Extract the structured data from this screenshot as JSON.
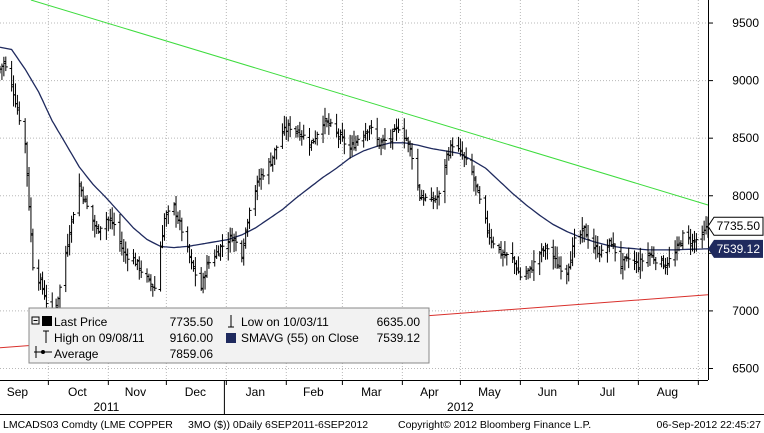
{
  "chart_data": {
    "type": "line",
    "subtype": "ohlc-bars",
    "colors": {
      "background": "#ffffff",
      "price_bars": "#000000",
      "sma": "#1f2a5e",
      "upper_trendline": "#3ddc3d",
      "lower_trendline": "#d9302c",
      "grid": "#b8b8b8",
      "last_price_tag_bg": "#ffffff",
      "sma_tag_bg": "#1f2a5e",
      "sma_tag_text": "#ffffff",
      "legend_bg": "#f2f2f2"
    },
    "y_axis": {
      "position": "right",
      "ylim": [
        6400,
        9700
      ],
      "ticks": [
        6500,
        7000,
        7500,
        8000,
        8500,
        9000,
        9500
      ],
      "tick_labels": [
        "6500",
        "7000",
        "7500",
        "8000",
        "8500",
        "9000",
        "9500"
      ]
    },
    "x_axis": {
      "range": [
        "2011-09-06",
        "2012-09-06"
      ],
      "month_ticks": [
        "2011-09-01",
        "2011-10-01",
        "2011-11-01",
        "2011-12-01",
        "2012-01-01",
        "2012-02-01",
        "2012-03-01",
        "2012-04-01",
        "2012-05-01",
        "2012-06-01",
        "2012-07-01",
        "2012-08-01",
        "2012-09-01"
      ],
      "month_labels": [
        {
          "label": "Sep",
          "at": "2011-09-15"
        },
        {
          "label": "Oct",
          "at": "2011-10-16"
        },
        {
          "label": "Nov",
          "at": "2011-11-15"
        },
        {
          "label": "Dec",
          "at": "2011-12-16"
        },
        {
          "label": "Jan",
          "at": "2012-01-16"
        },
        {
          "label": "Feb",
          "at": "2012-02-15"
        },
        {
          "label": "Mar",
          "at": "2012-03-16"
        },
        {
          "label": "Apr",
          "at": "2012-04-15"
        },
        {
          "label": "May",
          "at": "2012-05-16"
        },
        {
          "label": "Jun",
          "at": "2012-06-15"
        },
        {
          "label": "Jul",
          "at": "2012-07-16"
        },
        {
          "label": "Aug",
          "at": "2012-08-16"
        }
      ],
      "year_labels": [
        {
          "label": "2011",
          "at": "2011-10-31"
        },
        {
          "label": "2012",
          "at": "2012-05-01"
        }
      ],
      "year_divider": "2011-12-31"
    },
    "grid": true,
    "price_series": {
      "name": "LMCADS03 Comdty",
      "anchors": [
        [
          "2011-09-06",
          9100
        ],
        [
          "2011-09-08",
          9160
        ],
        [
          "2011-09-13",
          8900
        ],
        [
          "2011-09-19",
          8450
        ],
        [
          "2011-09-23",
          7400
        ],
        [
          "2011-09-28",
          7200
        ],
        [
          "2011-10-03",
          6900
        ],
        [
          "2011-10-07",
          7200
        ],
        [
          "2011-10-12",
          7700
        ],
        [
          "2011-10-17",
          8100
        ],
        [
          "2011-10-21",
          7900
        ],
        [
          "2011-10-26",
          7700
        ],
        [
          "2011-10-31",
          7800
        ],
        [
          "2011-11-04",
          7750
        ],
        [
          "2011-11-09",
          7500
        ],
        [
          "2011-11-14",
          7450
        ],
        [
          "2011-11-18",
          7350
        ],
        [
          "2011-11-22",
          7250
        ],
        [
          "2011-11-25",
          7200
        ],
        [
          "2011-11-30",
          7800
        ],
        [
          "2011-12-05",
          7900
        ],
        [
          "2011-12-09",
          7700
        ],
        [
          "2011-12-14",
          7400
        ],
        [
          "2011-12-19",
          7200
        ],
        [
          "2011-12-22",
          7400
        ],
        [
          "2011-12-29",
          7550
        ],
        [
          "2012-01-04",
          7650
        ],
        [
          "2012-01-09",
          7500
        ],
        [
          "2012-01-13",
          7900
        ],
        [
          "2012-01-18",
          8150
        ],
        [
          "2012-01-24",
          8300
        ],
        [
          "2012-01-30",
          8550
        ],
        [
          "2012-02-03",
          8600
        ],
        [
          "2012-02-08",
          8550
        ],
        [
          "2012-02-14",
          8450
        ],
        [
          "2012-02-20",
          8650
        ],
        [
          "2012-02-24",
          8600
        ],
        [
          "2012-02-29",
          8500
        ],
        [
          "2012-03-05",
          8400
        ],
        [
          "2012-03-09",
          8500
        ],
        [
          "2012-03-15",
          8600
        ],
        [
          "2012-03-20",
          8450
        ],
        [
          "2012-03-26",
          8500
        ],
        [
          "2012-03-30",
          8600
        ],
        [
          "2012-04-03",
          8500
        ],
        [
          "2012-04-06",
          8350
        ],
        [
          "2012-04-10",
          8000
        ],
        [
          "2012-04-16",
          7950
        ],
        [
          "2012-04-20",
          8000
        ],
        [
          "2012-04-24",
          8350
        ],
        [
          "2012-04-27",
          8450
        ],
        [
          "2012-05-02",
          8350
        ],
        [
          "2012-05-07",
          8200
        ],
        [
          "2012-05-11",
          7950
        ],
        [
          "2012-05-16",
          7650
        ],
        [
          "2012-05-22",
          7500
        ],
        [
          "2012-05-28",
          7450
        ],
        [
          "2012-06-01",
          7300
        ],
        [
          "2012-06-06",
          7350
        ],
        [
          "2012-06-11",
          7500
        ],
        [
          "2012-06-15",
          7550
        ],
        [
          "2012-06-20",
          7400
        ],
        [
          "2012-06-25",
          7350
        ],
        [
          "2012-06-29",
          7600
        ],
        [
          "2012-07-04",
          7700
        ],
        [
          "2012-07-09",
          7550
        ],
        [
          "2012-07-13",
          7500
        ],
        [
          "2012-07-18",
          7600
        ],
        [
          "2012-07-23",
          7400
        ],
        [
          "2012-07-27",
          7450
        ],
        [
          "2012-08-01",
          7400
        ],
        [
          "2012-08-06",
          7500
        ],
        [
          "2012-08-10",
          7450
        ],
        [
          "2012-08-15",
          7400
        ],
        [
          "2012-08-20",
          7500
        ],
        [
          "2012-08-24",
          7650
        ],
        [
          "2012-08-29",
          7600
        ],
        [
          "2012-09-03",
          7650
        ],
        [
          "2012-09-06",
          7735.5
        ]
      ]
    },
    "sma_series": {
      "name": "SMAVG (55) on Close",
      "anchors": [
        [
          "2011-09-06",
          9290
        ],
        [
          "2011-09-12",
          9270
        ],
        [
          "2011-09-19",
          9100
        ],
        [
          "2011-09-26",
          8900
        ],
        [
          "2011-10-03",
          8650
        ],
        [
          "2011-10-10",
          8450
        ],
        [
          "2011-10-17",
          8250
        ],
        [
          "2011-10-24",
          8100
        ],
        [
          "2011-10-31",
          7980
        ],
        [
          "2011-11-07",
          7850
        ],
        [
          "2011-11-14",
          7720
        ],
        [
          "2011-11-21",
          7620
        ],
        [
          "2011-11-28",
          7560
        ],
        [
          "2011-12-05",
          7550
        ],
        [
          "2011-12-12",
          7560
        ],
        [
          "2011-12-19",
          7580
        ],
        [
          "2011-12-26",
          7600
        ],
        [
          "2012-01-02",
          7620
        ],
        [
          "2012-01-09",
          7660
        ],
        [
          "2012-01-16",
          7720
        ],
        [
          "2012-01-23",
          7800
        ],
        [
          "2012-01-30",
          7880
        ],
        [
          "2012-02-06",
          7980
        ],
        [
          "2012-02-13",
          8070
        ],
        [
          "2012-02-20",
          8160
        ],
        [
          "2012-02-27",
          8240
        ],
        [
          "2012-03-05",
          8330
        ],
        [
          "2012-03-12",
          8390
        ],
        [
          "2012-03-19",
          8430
        ],
        [
          "2012-03-26",
          8460
        ],
        [
          "2012-04-02",
          8460
        ],
        [
          "2012-04-09",
          8440
        ],
        [
          "2012-04-16",
          8410
        ],
        [
          "2012-04-23",
          8390
        ],
        [
          "2012-04-30",
          8370
        ],
        [
          "2012-05-07",
          8310
        ],
        [
          "2012-05-14",
          8240
        ],
        [
          "2012-05-21",
          8130
        ],
        [
          "2012-05-28",
          8020
        ],
        [
          "2012-06-04",
          7920
        ],
        [
          "2012-06-11",
          7830
        ],
        [
          "2012-06-18",
          7750
        ],
        [
          "2012-06-25",
          7690
        ],
        [
          "2012-07-02",
          7640
        ],
        [
          "2012-07-09",
          7600
        ],
        [
          "2012-07-16",
          7570
        ],
        [
          "2012-07-23",
          7550
        ],
        [
          "2012-07-30",
          7540
        ],
        [
          "2012-08-06",
          7530
        ],
        [
          "2012-08-13",
          7530
        ],
        [
          "2012-08-20",
          7530
        ],
        [
          "2012-08-27",
          7535
        ],
        [
          "2012-09-06",
          7539.12
        ]
      ]
    },
    "upper_trendline": {
      "from": [
        "2011-09-22",
        9700
      ],
      "to": [
        "2012-09-06",
        7920
      ]
    },
    "lower_trendline": {
      "from": [
        "2011-09-06",
        6680
      ],
      "to": [
        "2012-09-06",
        7140
      ]
    },
    "last_price_tag": "7735.50",
    "sma_tag": "7539.12",
    "legend": {
      "position": "bottom-left",
      "rows": [
        {
          "label": "Last Price",
          "value": "7735.50"
        },
        {
          "label": "High on 09/08/11",
          "value": "9160.00"
        },
        {
          "label": "Average",
          "value": "7859.06"
        },
        {
          "label": "Low on 10/03/11",
          "value": "6635.00"
        },
        {
          "label": "SMAVG (55) on Close",
          "value": "7539.12"
        }
      ]
    }
  },
  "footer": {
    "ticker": "LMCADS03 Comdty (LME COPPER",
    "period": "3MO ($)) 0Daily 6SEP2011-6SEP2012",
    "copyright": "Copyright© 2012 Bloomberg Finance L.P.",
    "timestamp": "06-Sep-2012 22:45:27"
  }
}
